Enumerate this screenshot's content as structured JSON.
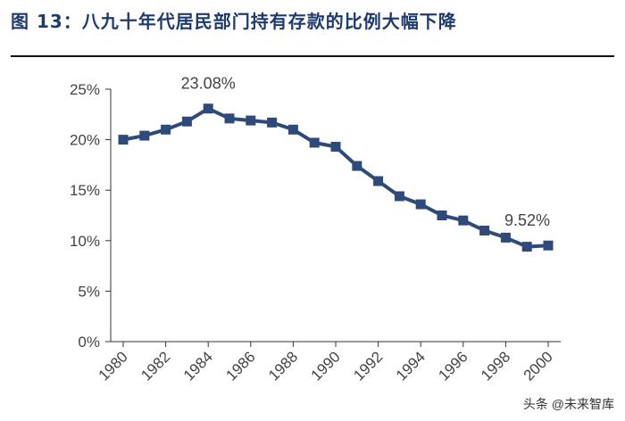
{
  "title": "图 13：八九十年代居民部门持有存款的比例大幅下降",
  "watermark": "头条 @未来智库",
  "chart_data": {
    "type": "line",
    "x": [
      1980,
      1981,
      1982,
      1983,
      1984,
      1985,
      1986,
      1987,
      1988,
      1989,
      1990,
      1991,
      1992,
      1993,
      1994,
      1995,
      1996,
      1997,
      1998,
      1999,
      2000
    ],
    "values": [
      20.0,
      20.4,
      21.0,
      21.8,
      23.08,
      22.1,
      21.9,
      21.7,
      21.0,
      19.7,
      19.3,
      17.4,
      15.9,
      14.4,
      13.6,
      12.5,
      12.0,
      11.0,
      10.3,
      9.4,
      9.52
    ],
    "xticks": [
      "1980",
      "1982",
      "1984",
      "1986",
      "1988",
      "1990",
      "1992",
      "1994",
      "1996",
      "1998",
      "2000"
    ],
    "yticks": [
      "0%",
      "5%",
      "10%",
      "15%",
      "20%",
      "25%"
    ],
    "ylim": [
      0,
      25
    ],
    "annotations": [
      {
        "text": "23.08%",
        "x": 1984,
        "y": 23.08
      },
      {
        "text": "9.52%",
        "x": 2000,
        "y": 9.52
      }
    ],
    "line_color": "#2d4a7a",
    "marker": "square",
    "grid": false
  }
}
